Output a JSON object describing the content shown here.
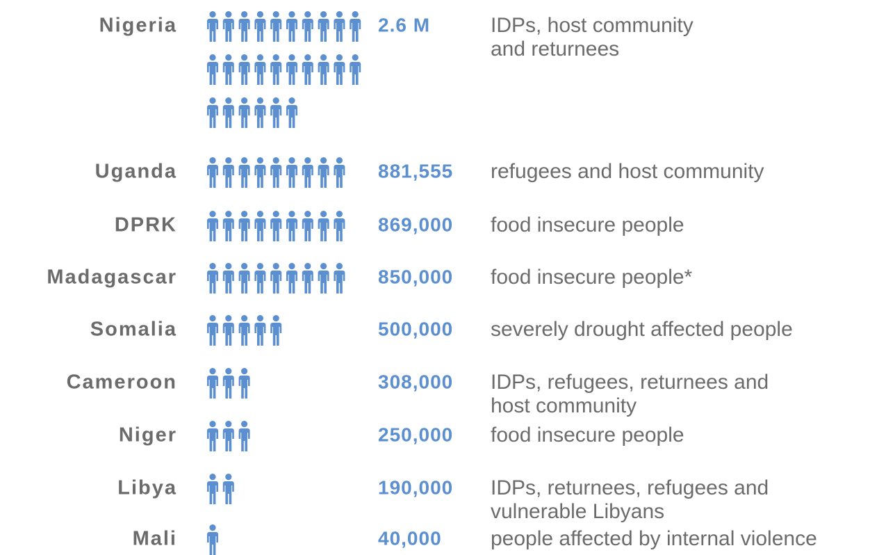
{
  "chart_data": {
    "type": "pictogram",
    "categories": [
      "Nigeria",
      "Uganda",
      "DPRK",
      "Madagascar",
      "Somalia",
      "Cameroon",
      "Niger",
      "Libya",
      "Mali"
    ],
    "values": [
      2600000,
      881555,
      869000,
      850000,
      500000,
      308000,
      250000,
      190000,
      40000
    ],
    "value_labels": [
      "2.6 M",
      "881,555",
      "869,000",
      "850,000",
      "500,000",
      "308,000",
      "250,000",
      "190,000",
      "40,000"
    ],
    "icon_counts": [
      26,
      9,
      9,
      9,
      5,
      3,
      3,
      2,
      1
    ],
    "descriptions": [
      [
        "IDPs, host community",
        "and returnees"
      ],
      [
        "refugees and host community"
      ],
      [
        "food insecure people"
      ],
      [
        "food insecure people*"
      ],
      [
        "severely drought affected people"
      ],
      [
        "IDPs, refugees, returnees and",
        "host community"
      ],
      [
        "food insecure people"
      ],
      [
        "IDPs, returnees, refugees and",
        "vulnerable Libyans"
      ],
      [
        "people affected by internal violence"
      ]
    ],
    "color": "#5b8fd0"
  }
}
